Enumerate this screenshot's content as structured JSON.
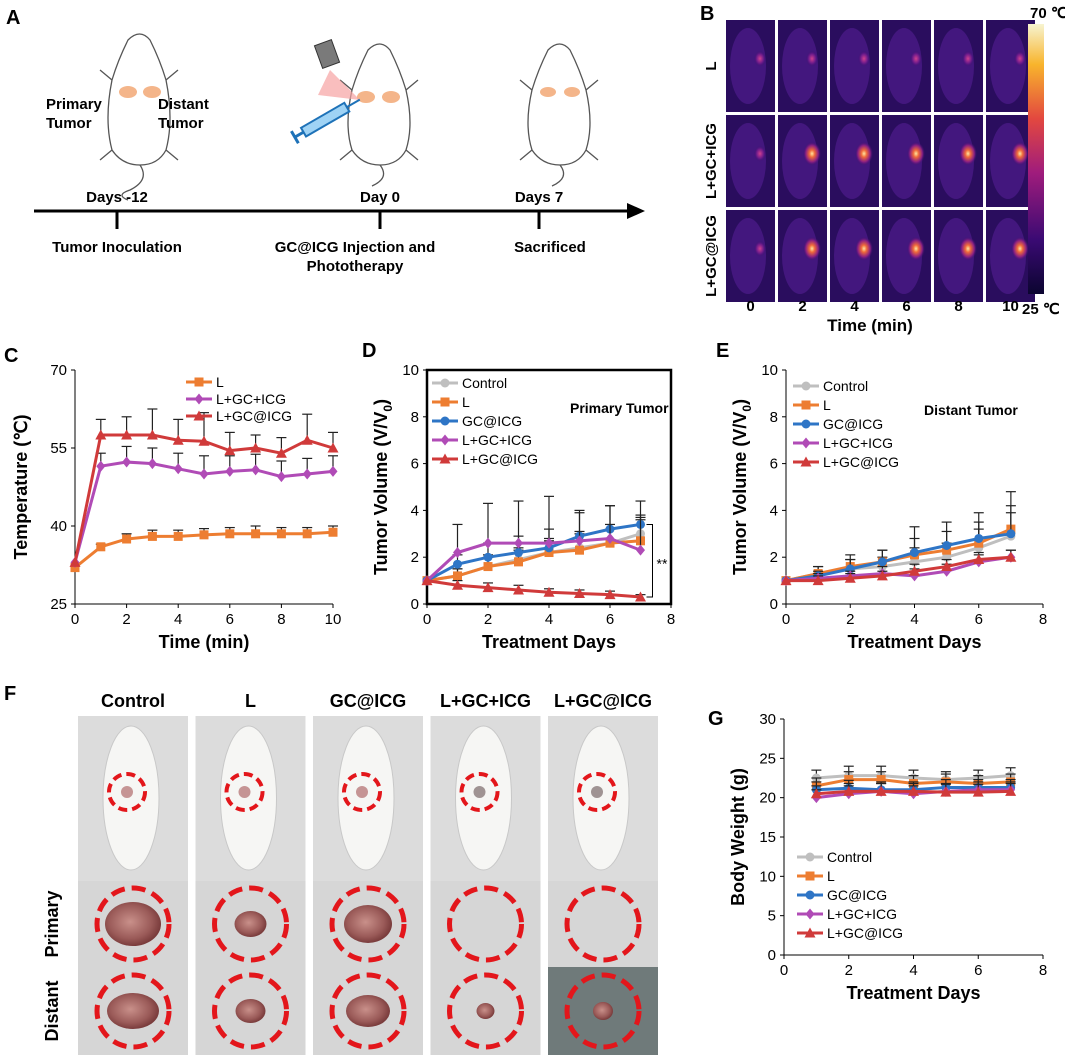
{
  "panel_labels": {
    "A": "A",
    "B": "B",
    "C": "C",
    "D": "D",
    "E": "E",
    "F": "F",
    "G": "G"
  },
  "panel_a": {
    "primary_label_1": "Primary",
    "primary_label_2": "Tumor",
    "distant_label_1": "Distant",
    "distant_label_2": "Tumor",
    "timepoints": [
      {
        "day": "Days -12",
        "event": "Tumor Inoculation",
        "event2": ""
      },
      {
        "day": "Day 0",
        "event": "GC@ICG Injection and",
        "event2": "Phototherapy"
      },
      {
        "day": "Days 7",
        "event": "Sacrificed",
        "event2": ""
      }
    ]
  },
  "panel_b": {
    "row_labels": [
      "L",
      "L+GC+ICG",
      "L+GC@ICG"
    ],
    "time_ticks": [
      "0",
      "2",
      "4",
      "6",
      "8",
      "10"
    ],
    "xlabel": "Time (min)",
    "scale_max": "70 ℃",
    "scale_min": "25 ℃",
    "colors": {
      "low": "#1a0a4a",
      "mid": "#b0207a",
      "high": "#f6f3c6"
    }
  },
  "panel_f": {
    "columns": [
      "Control",
      "L",
      "GC@ICG",
      "L+GC+ICG",
      "L+GC@ICG"
    ],
    "row_labels": [
      "Primary",
      "Distant"
    ],
    "circle_color": "#e3161b"
  },
  "chart_data": [
    {
      "id": "C",
      "type": "line",
      "xlabel": "Time (min)",
      "ylabel": "Temperature (℃)",
      "xlim": [
        0,
        10
      ],
      "ylim": [
        25,
        70
      ],
      "xticks": [
        0,
        2,
        4,
        6,
        8,
        10
      ],
      "yticks": [
        25,
        40,
        55,
        70
      ],
      "x": [
        0,
        1,
        2,
        3,
        4,
        5,
        6,
        7,
        8,
        9,
        10
      ],
      "series": [
        {
          "name": "L",
          "color": "#ed7d31",
          "marker": "square",
          "values": [
            32,
            36,
            37.5,
            38,
            38,
            38.3,
            38.5,
            38.5,
            38.5,
            38.5,
            38.8
          ],
          "err": [
            0,
            0.5,
            1,
            1.2,
            1.2,
            1.2,
            1.2,
            1.5,
            1.2,
            1.2,
            1.2
          ]
        },
        {
          "name": "L+GC+ICG",
          "color": "#b04bb6",
          "marker": "diamond",
          "values": [
            33,
            51.5,
            52.3,
            52,
            51,
            50,
            50.5,
            50.8,
            49.5,
            50,
            50.5
          ],
          "err": [
            0,
            2.5,
            3,
            3,
            3,
            3.5,
            3,
            3,
            3,
            3,
            3
          ]
        },
        {
          "name": "L+GC@ICG",
          "color": "#d03a3a",
          "marker": "triangle",
          "values": [
            33,
            57.5,
            57.5,
            57.5,
            56.5,
            56.3,
            54.5,
            55,
            54,
            56.5,
            55
          ],
          "err": [
            0,
            3,
            3.5,
            5,
            4,
            5.5,
            3.5,
            2.5,
            3,
            5,
            3
          ]
        }
      ]
    },
    {
      "id": "D",
      "type": "line",
      "annotation": "Primary Tumor",
      "significance": "**",
      "xlabel": "Treatment Days",
      "ylabel": "Tumor Volume (V/V0)",
      "xlim": [
        0,
        8
      ],
      "ylim": [
        0,
        10
      ],
      "xticks": [
        0,
        2,
        4,
        6,
        8
      ],
      "yticks": [
        0,
        2,
        4,
        6,
        8,
        10
      ],
      "x": [
        0,
        1,
        2,
        3,
        4,
        5,
        6,
        7
      ],
      "series": [
        {
          "name": "Control",
          "color": "#bfbfbf",
          "marker": "circle",
          "values": [
            1,
            1.2,
            1.6,
            1.9,
            2.2,
            2.4,
            2.6,
            3.0
          ],
          "err": [
            0,
            0.3,
            0.4,
            0.4,
            0.5,
            0.6,
            0.6,
            0.8
          ]
        },
        {
          "name": "L",
          "color": "#ed7d31",
          "marker": "square",
          "values": [
            1,
            1.2,
            1.6,
            1.8,
            2.2,
            2.3,
            2.6,
            2.7
          ],
          "err": [
            0,
            0.3,
            0.5,
            0.6,
            0.6,
            0.8,
            0.8,
            0.9
          ]
        },
        {
          "name": "GC@ICG",
          "color": "#2e75c6",
          "marker": "circle",
          "values": [
            1,
            1.7,
            2.0,
            2.2,
            2.4,
            2.9,
            3.2,
            3.4
          ],
          "err": [
            0,
            0.4,
            0.6,
            0.7,
            0.8,
            1.0,
            1.0,
            1.0
          ]
        },
        {
          "name": "L+GC+ICG",
          "color": "#b04bb6",
          "marker": "diamond",
          "values": [
            1,
            2.2,
            2.6,
            2.6,
            2.6,
            2.7,
            2.8,
            2.3
          ],
          "err": [
            0,
            1.2,
            1.7,
            1.8,
            2.0,
            1.3,
            1.4,
            1.4
          ]
        },
        {
          "name": "L+GC@ICG",
          "color": "#d03a3a",
          "marker": "triangle",
          "values": [
            1,
            0.8,
            0.7,
            0.6,
            0.5,
            0.45,
            0.4,
            0.3
          ],
          "err": [
            0,
            0.2,
            0.2,
            0.2,
            0.15,
            0.15,
            0.15,
            0.1
          ]
        }
      ]
    },
    {
      "id": "E",
      "type": "line",
      "annotation": "Distant Tumor",
      "xlabel": "Treatment Days",
      "ylabel": "Tumor Volume (V/V0)",
      "xlim": [
        0,
        8
      ],
      "ylim": [
        0,
        10
      ],
      "xticks": [
        0,
        2,
        4,
        6,
        8
      ],
      "yticks": [
        0,
        2,
        4,
        6,
        8,
        10
      ],
      "x": [
        0,
        1,
        2,
        3,
        4,
        5,
        6,
        7
      ],
      "series": [
        {
          "name": "Control",
          "color": "#bfbfbf",
          "marker": "circle",
          "values": [
            1,
            1.3,
            1.5,
            1.6,
            1.8,
            2.0,
            2.4,
            2.9
          ],
          "err": [
            0,
            0.3,
            0.4,
            0.4,
            0.6,
            0.6,
            0.8,
            1.0
          ]
        },
        {
          "name": "L",
          "color": "#ed7d31",
          "marker": "square",
          "values": [
            1,
            1.3,
            1.6,
            1.8,
            2.1,
            2.3,
            2.6,
            3.2
          ],
          "err": [
            0,
            0.3,
            0.5,
            0.5,
            0.7,
            0.8,
            0.9,
            1.6
          ]
        },
        {
          "name": "GC@ICG",
          "color": "#2e75c6",
          "marker": "circle",
          "values": [
            1,
            1.2,
            1.5,
            1.8,
            2.2,
            2.5,
            2.8,
            3.0
          ],
          "err": [
            0,
            0.2,
            0.4,
            0.5,
            1.1,
            1.0,
            1.1,
            1.2
          ]
        },
        {
          "name": "L+GC+ICG",
          "color": "#b04bb6",
          "marker": "diamond",
          "values": [
            1,
            1.1,
            1.2,
            1.3,
            1.2,
            1.4,
            1.8,
            2.0
          ],
          "err": [
            0,
            0.2,
            0.2,
            0.3,
            0.3,
            0.3,
            0.3,
            0.3
          ]
        },
        {
          "name": "L+GC@ICG",
          "color": "#d03a3a",
          "marker": "triangle",
          "values": [
            1,
            1.0,
            1.1,
            1.2,
            1.4,
            1.6,
            1.9,
            2.0
          ],
          "err": [
            0,
            0.2,
            0.2,
            0.2,
            0.3,
            0.3,
            0.3,
            0.3
          ]
        }
      ]
    },
    {
      "id": "G",
      "type": "line",
      "xlabel": "Treatment Days",
      "ylabel": "Body Weight (g)",
      "xlim": [
        0,
        8
      ],
      "ylim": [
        0,
        30
      ],
      "xticks": [
        0,
        2,
        4,
        6,
        8
      ],
      "yticks": [
        0,
        5,
        10,
        15,
        20,
        25,
        30
      ],
      "x": [
        1,
        2,
        3,
        4,
        5,
        6,
        7
      ],
      "series": [
        {
          "name": "Control",
          "color": "#bfbfbf",
          "marker": "circle",
          "values": [
            22.5,
            22.8,
            22.8,
            22.5,
            22.3,
            22.5,
            22.8
          ],
          "err": [
            1,
            1.2,
            1.2,
            1,
            1,
            1,
            1
          ]
        },
        {
          "name": "L",
          "color": "#ed7d31",
          "marker": "square",
          "values": [
            21.5,
            22.3,
            22.3,
            21.8,
            22.0,
            21.8,
            22.0
          ],
          "err": [
            1,
            1,
            1,
            1,
            1,
            1,
            1
          ]
        },
        {
          "name": "GC@ICG",
          "color": "#2e75c6",
          "marker": "circle",
          "values": [
            21.0,
            21.2,
            21.0,
            21.0,
            21.3,
            21.3,
            21.3
          ],
          "err": [
            1,
            1,
            1,
            1,
            1,
            1,
            1
          ]
        },
        {
          "name": "L+GC+ICG",
          "color": "#b04bb6",
          "marker": "diamond",
          "values": [
            20.0,
            20.5,
            20.8,
            20.5,
            20.8,
            21.0,
            21.0
          ],
          "err": [
            1,
            1,
            1,
            1,
            1,
            1,
            1
          ]
        },
        {
          "name": "L+GC@ICG",
          "color": "#d03a3a",
          "marker": "triangle",
          "values": [
            20.5,
            20.8,
            20.8,
            20.8,
            20.7,
            20.7,
            20.8
          ],
          "err": [
            1,
            1,
            1,
            1,
            1,
            1,
            1
          ]
        }
      ]
    }
  ]
}
